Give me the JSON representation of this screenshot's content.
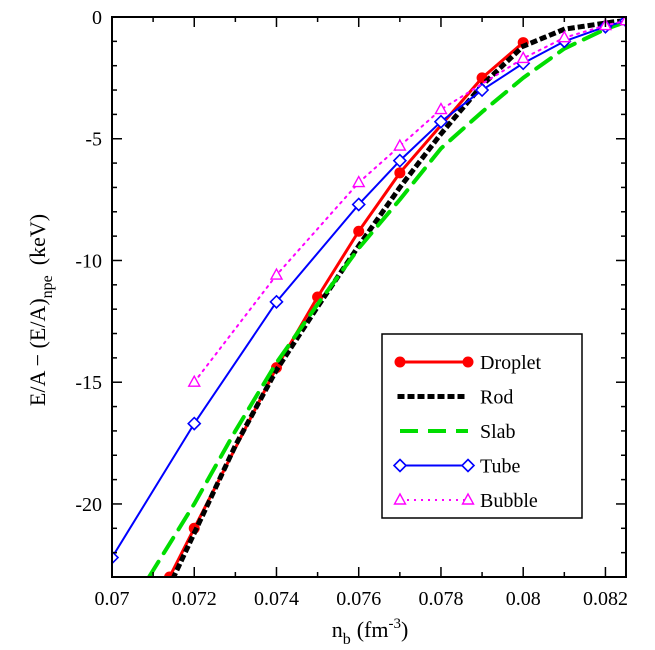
{
  "chart_data": {
    "type": "line",
    "title": "",
    "xlabel": {
      "main": "n",
      "sub": "b",
      "unit": "(fm",
      "sup": "-3",
      "close": ")"
    },
    "ylabel": {
      "main": "E/A − (E/A)",
      "sub": "npe",
      "unit": "(keV)"
    },
    "xlim": [
      0.07,
      0.0825
    ],
    "ylim": [
      -23,
      0
    ],
    "x_ticks": [
      0.07,
      0.072,
      0.074,
      0.076,
      0.078,
      0.08,
      0.082
    ],
    "x_tick_labels": [
      "0.07",
      "0.072",
      "0.074",
      "0.076",
      "0.078",
      "0.08",
      "0.082"
    ],
    "y_ticks": [
      0,
      -5,
      -10,
      -15,
      -20
    ],
    "y_tick_labels": [
      "0",
      "-5",
      "-10",
      "-15",
      "-20"
    ],
    "grid": false,
    "legend_position": "bottom-right",
    "series": [
      {
        "name": "Droplet",
        "color": "#ff0000",
        "dash": "",
        "width": 3,
        "marker": "circle",
        "x": [
          0.0714,
          0.072,
          0.074,
          0.075,
          0.076,
          0.077,
          0.079,
          0.08
        ],
        "y": [
          -23.0,
          -21.0,
          -14.4,
          -11.5,
          -8.8,
          -6.4,
          -2.5,
          -1.05
        ]
      },
      {
        "name": "Rod",
        "color": "#000000",
        "dash": "2,8",
        "width": 5,
        "marker": "none",
        "x": [
          0.0715,
          0.072,
          0.073,
          0.074,
          0.075,
          0.076,
          0.077,
          0.078,
          0.079,
          0.08,
          0.081,
          0.0822,
          0.0825
        ],
        "y": [
          -23.0,
          -21.2,
          -17.6,
          -14.5,
          -11.9,
          -9.4,
          -7.0,
          -4.8,
          -2.8,
          -1.2,
          -0.5,
          -0.2,
          -0.15
        ]
      },
      {
        "name": "Slab",
        "color": "#00dd00",
        "dash": "18,10",
        "width": 4,
        "marker": "none",
        "x": [
          0.0709,
          0.072,
          0.073,
          0.074,
          0.075,
          0.076,
          0.077,
          0.078,
          0.079,
          0.08,
          0.081,
          0.082,
          0.0825
        ],
        "y": [
          -23.0,
          -20.0,
          -17.0,
          -14.2,
          -11.8,
          -9.5,
          -7.5,
          -5.4,
          -3.9,
          -2.5,
          -1.3,
          -0.5,
          -0.2
        ]
      },
      {
        "name": "Tube",
        "color": "#0000ff",
        "dash": "",
        "width": 2,
        "marker": "diamond",
        "x": [
          0.07,
          0.072,
          0.074,
          0.076,
          0.077,
          0.078,
          0.079,
          0.08,
          0.081,
          0.082,
          0.0825
        ],
        "y": [
          -22.2,
          -16.7,
          -11.7,
          -7.7,
          -5.9,
          -4.3,
          -3.0,
          -1.9,
          -1.0,
          -0.4,
          -0.15
        ]
      },
      {
        "name": "Bubble",
        "color": "#ff00ff",
        "dash": "2,5",
        "width": 2,
        "marker": "triangle",
        "x": [
          0.072,
          0.074,
          0.076,
          0.077,
          0.078,
          0.08,
          0.081,
          0.082,
          0.0825
        ],
        "y": [
          -15.0,
          -10.6,
          -6.8,
          -5.3,
          -3.8,
          -1.7,
          -0.85,
          -0.35,
          -0.15
        ]
      }
    ]
  }
}
